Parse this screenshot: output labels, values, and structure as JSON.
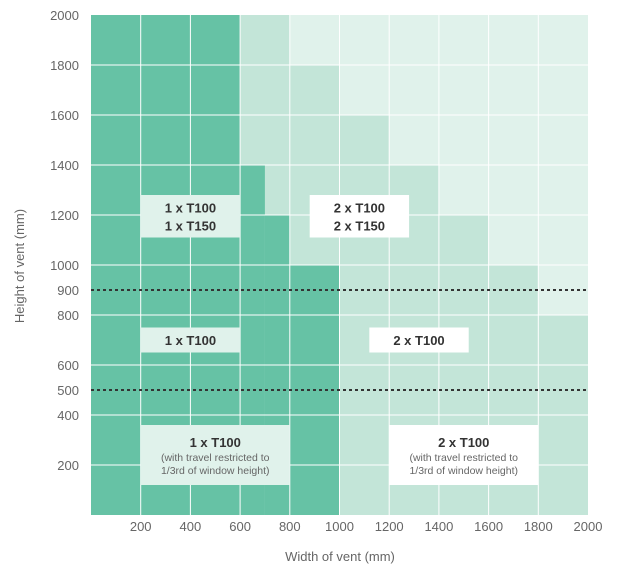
{
  "chart_data": {
    "type": "heatmap",
    "title": "",
    "xlabel": "Width of vent (mm)",
    "ylabel": "Height of vent (mm)",
    "xlim": [
      0,
      2000
    ],
    "ylim": [
      0,
      2000
    ],
    "x_ticks": [
      "200",
      "400",
      "600",
      "800",
      "1000",
      "1200",
      "1400",
      "1600",
      "1800",
      "2000"
    ],
    "y_ticks": [
      {
        "value": 2000,
        "label": "2000"
      },
      {
        "value": 1800,
        "label": "1800"
      },
      {
        "value": 1600,
        "label": "1600"
      },
      {
        "value": 1400,
        "label": "1400"
      },
      {
        "value": 1200,
        "label": "1200"
      },
      {
        "value": 1000,
        "label": "1000"
      },
      {
        "value": 900,
        "label": "900"
      },
      {
        "value": 800,
        "label": "800"
      },
      {
        "value": 600,
        "label": "600"
      },
      {
        "value": 500,
        "label": "500"
      },
      {
        "value": 400,
        "label": "400"
      },
      {
        "value": 200,
        "label": "200"
      }
    ],
    "grid": true,
    "colors": {
      "one_actuator": "#66c2a5",
      "two_actuator": "#c3e5d8",
      "outside": "#e0f2eb",
      "gridline": "#ffffff",
      "label_box": "#e0f2eb",
      "label_box_light": "#ffffff",
      "reference_line": "#333333"
    },
    "zones": [
      {
        "type": "one_actuator",
        "x": [
          0,
          600
        ],
        "y": [
          0,
          2000
        ]
      },
      {
        "type": "one_actuator",
        "x": [
          600,
          700
        ],
        "y": [
          0,
          1400
        ]
      },
      {
        "type": "one_actuator",
        "x": [
          700,
          800
        ],
        "y": [
          0,
          1200
        ]
      },
      {
        "type": "one_actuator",
        "x": [
          800,
          1000
        ],
        "y": [
          0,
          1000
        ]
      },
      {
        "type": "two_actuator",
        "x": [
          600,
          800
        ],
        "y": [
          1400,
          2000
        ]
      },
      {
        "type": "two_actuator",
        "x": [
          700,
          1000
        ],
        "y": [
          1200,
          1400
        ]
      },
      {
        "type": "two_actuator",
        "x": [
          800,
          1000
        ],
        "y": [
          1000,
          1200
        ]
      },
      {
        "type": "two_actuator",
        "x": [
          800,
          1000
        ],
        "y": [
          1400,
          1800
        ]
      },
      {
        "type": "two_actuator",
        "x": [
          1000,
          1200
        ],
        "y": [
          0,
          1600
        ]
      },
      {
        "type": "two_actuator",
        "x": [
          1200,
          1400
        ],
        "y": [
          0,
          1400
        ]
      },
      {
        "type": "two_actuator",
        "x": [
          1400,
          1600
        ],
        "y": [
          0,
          1200
        ]
      },
      {
        "type": "two_actuator",
        "x": [
          1600,
          1800
        ],
        "y": [
          0,
          1000
        ]
      },
      {
        "type": "two_actuator",
        "x": [
          1800,
          2000
        ],
        "y": [
          0,
          800
        ]
      }
    ],
    "reference_lines": [
      900,
      500
    ],
    "labels": [
      {
        "lines": [
          "1 x T100",
          "1 x T150"
        ],
        "x": [
          200,
          600
        ],
        "y": [
          1110,
          1280
        ],
        "box": "label_box"
      },
      {
        "lines": [
          "2 x T100",
          "2 x T150"
        ],
        "x": [
          880,
          1280
        ],
        "y": [
          1110,
          1280
        ],
        "box": "label_box_light"
      },
      {
        "lines": [
          "1 x T100"
        ],
        "x": [
          200,
          600
        ],
        "y": [
          650,
          750
        ],
        "box": "label_box"
      },
      {
        "lines": [
          "2 x T100"
        ],
        "x": [
          1120,
          1520
        ],
        "y": [
          650,
          750
        ],
        "box": "label_box_light"
      },
      {
        "lines": [
          "1 x T100"
        ],
        "sub": [
          "(with travel restricted to",
          "1/3rd of window height)"
        ],
        "x": [
          200,
          800
        ],
        "y": [
          120,
          360
        ],
        "box": "label_box"
      },
      {
        "lines": [
          "2 x T100"
        ],
        "sub": [
          "(with travel restricted to",
          "1/3rd of window height)"
        ],
        "x": [
          1200,
          1800
        ],
        "y": [
          120,
          360
        ],
        "box": "label_box_light"
      }
    ]
  }
}
